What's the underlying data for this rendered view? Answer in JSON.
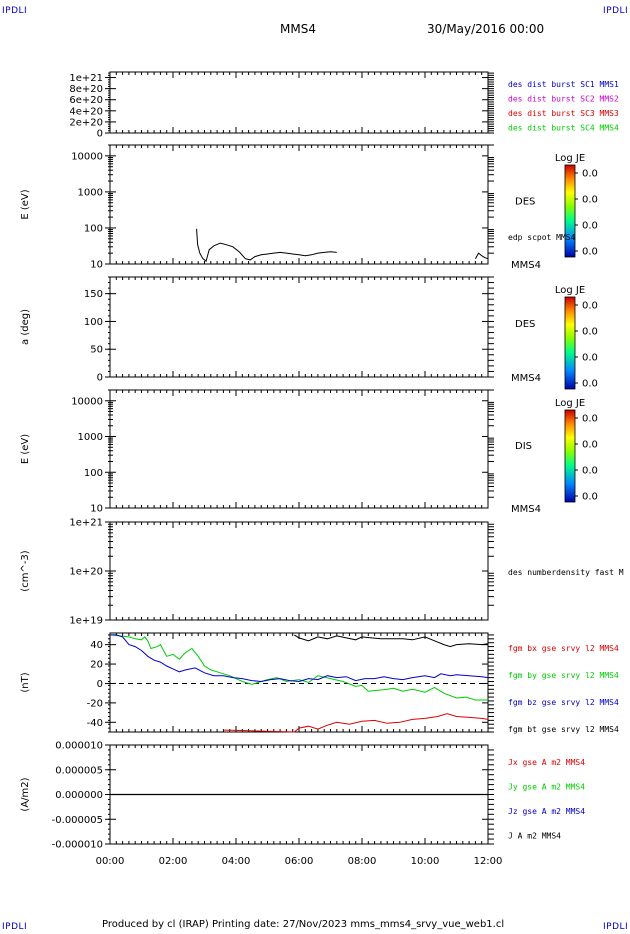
{
  "corner_label": "IPDLI",
  "header": {
    "spacecraft": "MMS4",
    "datetime": "30/May/2016 00:00"
  },
  "footer": "Produced by cl (IRAP)    Printing date: 27/Nov/2023    mms_mms4_srvy_vue_web1.cl",
  "colors": {
    "c1": "#0000cc",
    "c2": "#cc00cc",
    "c3": "#dd0000",
    "c4": "#00cc00",
    "bx": "#dd0000",
    "by": "#00cc00",
    "bz": "#0000cc",
    "bt": "#000000"
  },
  "colorbar": {
    "title": "Log JE",
    "ticks": [
      "0.0",
      "0.0",
      "0.0",
      "0.0"
    ]
  },
  "xaxis": {
    "ticks": [
      "00:00",
      "02:00",
      "04:00",
      "06:00",
      "08:00",
      "10:00",
      "12:00"
    ],
    "range_hours": [
      0,
      12
    ]
  },
  "chart_data": [
    {
      "type": "line",
      "panel": "burst",
      "ylabel": "",
      "ylim": [
        0,
        1.1e+21
      ],
      "yticks": [
        "0",
        "2e+20",
        "4e+20",
        "6e+20",
        "8e+20",
        "1e+21"
      ],
      "yvals": [
        0,
        2e+20,
        4e+20,
        6e+20,
        8e+20,
        1e+21
      ],
      "zero_line": true,
      "series": [
        {
          "name": "des dist burst SC1 MMS1",
          "values": []
        },
        {
          "name": "des dist burst SC2 MMS2",
          "values": []
        },
        {
          "name": "des dist burst SC3 MMS3",
          "values": []
        },
        {
          "name": "des dist burst SC4 MMS4",
          "values": []
        }
      ]
    },
    {
      "type": "heatmap",
      "panel": "des-energy",
      "ylabel": "E (eV)",
      "yscale": "log",
      "ylim": [
        10,
        20000
      ],
      "yticks": [
        "10",
        "100",
        "1000",
        "10000"
      ],
      "yvals": [
        10,
        100,
        1000,
        10000
      ],
      "instrument": "DES",
      "sc": "MMS4",
      "overlay": {
        "name": "edp scpot MMS4",
        "x": [
          2.75,
          2.78,
          2.85,
          2.95,
          3.05,
          3.15,
          3.3,
          3.5,
          3.7,
          3.9,
          4.1,
          4.3,
          4.45,
          4.6,
          4.8,
          5.0,
          5.2,
          5.4,
          5.6,
          5.8,
          6.0,
          6.2,
          6.4,
          6.6,
          6.8,
          7.0,
          7.2
        ],
        "y": [
          95,
          35,
          20,
          14,
          12,
          25,
          32,
          38,
          34,
          30,
          22,
          14,
          13,
          16,
          18,
          19,
          20,
          21,
          20,
          19,
          18,
          17,
          18,
          20,
          21,
          22,
          21
        ],
        "x2": [
          11.6,
          11.7,
          11.8,
          11.9,
          12.0
        ],
        "y2": [
          14,
          20,
          17,
          15,
          14
        ]
      }
    },
    {
      "type": "heatmap",
      "panel": "des-pitch",
      "ylabel": "a (deg)",
      "ylim": [
        0,
        180
      ],
      "yticks": [
        "0",
        "50",
        "100",
        "150"
      ],
      "yvals": [
        0,
        50,
        100,
        150
      ],
      "instrument": "DES",
      "sc": "MMS4"
    },
    {
      "type": "heatmap",
      "panel": "dis-energy",
      "ylabel": "E (eV)",
      "yscale": "log",
      "ylim": [
        10,
        20000
      ],
      "yticks": [
        "10",
        "100",
        "1000",
        "10000"
      ],
      "yvals": [
        10,
        100,
        1000,
        10000
      ],
      "instrument": "DIS",
      "sc": "MMS4"
    },
    {
      "type": "line",
      "panel": "density",
      "ylabel": "(cm^-3)",
      "yscale": "log",
      "ylim": [
        1e+19,
        1e+21
      ],
      "yticks": [
        "1e+19",
        "1e+20",
        "1e+21"
      ],
      "yvals": [
        1e+19,
        1e+20,
        1e+21
      ],
      "series": [
        {
          "name": "des numberdensity fast M",
          "values": []
        }
      ]
    },
    {
      "type": "line",
      "panel": "magnetic",
      "ylabel": "(nT)",
      "ylim": [
        -50,
        52
      ],
      "yticks": [
        "40",
        "20",
        "0",
        "-20",
        "-40"
      ],
      "yvals": [
        40,
        20,
        0,
        -20,
        -40
      ],
      "zero_line": true,
      "series": [
        {
          "name": "fgm bx gse srvy l2 MMS4",
          "color": "#dd0000",
          "x": [
            3.6,
            3.7,
            5.85,
            6.0,
            6.3,
            6.6,
            6.9,
            7.2,
            7.6,
            8.0,
            8.4,
            8.8,
            9.2,
            9.6,
            10.0,
            10.4,
            10.7,
            11.0,
            11.4,
            11.8,
            12.0
          ],
          "y": [
            -48,
            -48,
            -50,
            -46,
            -44,
            -47,
            -43,
            -40,
            -42,
            -39,
            -38,
            -41,
            -40,
            -37,
            -36,
            -34,
            -31,
            -34,
            -35,
            -36,
            -37
          ]
        },
        {
          "name": "fgm by gse srvy l2 MMS4",
          "color": "#00cc00",
          "x": [
            0,
            0.3,
            0.6,
            0.8,
            1.0,
            1.1,
            1.2,
            1.3,
            1.5,
            1.6,
            1.8,
            2.0,
            2.2,
            2.4,
            2.6,
            2.8,
            3.0,
            3.2,
            3.4,
            3.6,
            3.8,
            4.0,
            4.2,
            4.5,
            4.8,
            5.0,
            5.3,
            5.6,
            6.0,
            6.3,
            6.6,
            7.0,
            7.4,
            7.8,
            8.0,
            8.2,
            8.5,
            8.8,
            9.0,
            9.3,
            9.6,
            10.0,
            10.3,
            10.6,
            11.0,
            11.3,
            11.6,
            12.0
          ],
          "y": [
            50,
            49,
            48,
            46,
            45,
            48,
            44,
            36,
            38,
            40,
            28,
            30,
            25,
            32,
            36,
            28,
            18,
            14,
            12,
            10,
            8,
            5,
            2,
            -1,
            2,
            4,
            6,
            2,
            4,
            1,
            8,
            5,
            2,
            -3,
            -2,
            -8,
            -7,
            -6,
            -5,
            -8,
            -6,
            -9,
            -4,
            -10,
            -15,
            -14,
            -17,
            -17
          ]
        },
        {
          "name": "fgm bz gse srvy l2 MMS4",
          "color": "#0000cc",
          "x": [
            0,
            0.2,
            0.4,
            0.5,
            0.6,
            0.8,
            1.0,
            1.2,
            1.4,
            1.6,
            1.8,
            2.0,
            2.2,
            2.4,
            2.7,
            3.0,
            3.3,
            3.6,
            3.9,
            4.2,
            4.5,
            4.8,
            5.1,
            5.4,
            5.7,
            6.0,
            6.3,
            6.6,
            6.9,
            7.2,
            7.5,
            7.8,
            8.1,
            8.4,
            8.7,
            9.0,
            9.3,
            9.6,
            10.0,
            10.3,
            10.5,
            10.8,
            11.0,
            11.4,
            11.8,
            12.0
          ],
          "y": [
            50,
            50,
            48,
            44,
            40,
            38,
            34,
            28,
            24,
            22,
            18,
            15,
            12,
            14,
            16,
            11,
            8,
            8,
            6,
            5,
            3,
            2,
            4,
            5,
            3,
            2,
            5,
            4,
            8,
            6,
            7,
            3,
            5,
            5,
            7,
            5,
            4,
            6,
            8,
            6,
            10,
            8,
            9,
            8,
            7,
            6
          ]
        },
        {
          "name": "fgm bt gse srvy l2 MMS4",
          "color": "#000000",
          "x": [
            5.85,
            6.0,
            6.3,
            6.6,
            6.9,
            7.2,
            7.5,
            7.8,
            8.0,
            8.3,
            8.6,
            9.0,
            9.3,
            9.6,
            10.0,
            10.3,
            10.6,
            10.8,
            11.0,
            11.4,
            11.8,
            12.0
          ],
          "y": [
            50,
            47,
            44,
            48,
            46,
            49,
            47,
            45,
            48,
            47,
            46,
            46,
            46,
            45,
            48,
            44,
            40,
            38,
            40,
            41,
            40,
            41
          ]
        }
      ]
    },
    {
      "type": "line",
      "panel": "current",
      "ylabel": "(A/m2)",
      "ylim": [
        -1e-05,
        1e-05
      ],
      "yticks": [
        "0.000010",
        "0.000005",
        "0.000000",
        "-0.000005",
        "-0.000010"
      ],
      "yvals": [
        1e-05,
        5e-06,
        0,
        -5e-06,
        -1e-05
      ],
      "series": [
        {
          "name": "Jx gse A m2 MMS4",
          "color": "#dd0000",
          "values": []
        },
        {
          "name": "Jy gse A m2 MMS4",
          "color": "#00cc00",
          "values": []
        },
        {
          "name": "Jz gse A m2 MMS4",
          "color": "#0000cc",
          "values": []
        },
        {
          "name": "J A m2 MMS4",
          "color": "#000000",
          "x": [
            0,
            12
          ],
          "y": [
            0,
            0
          ]
        }
      ]
    }
  ]
}
